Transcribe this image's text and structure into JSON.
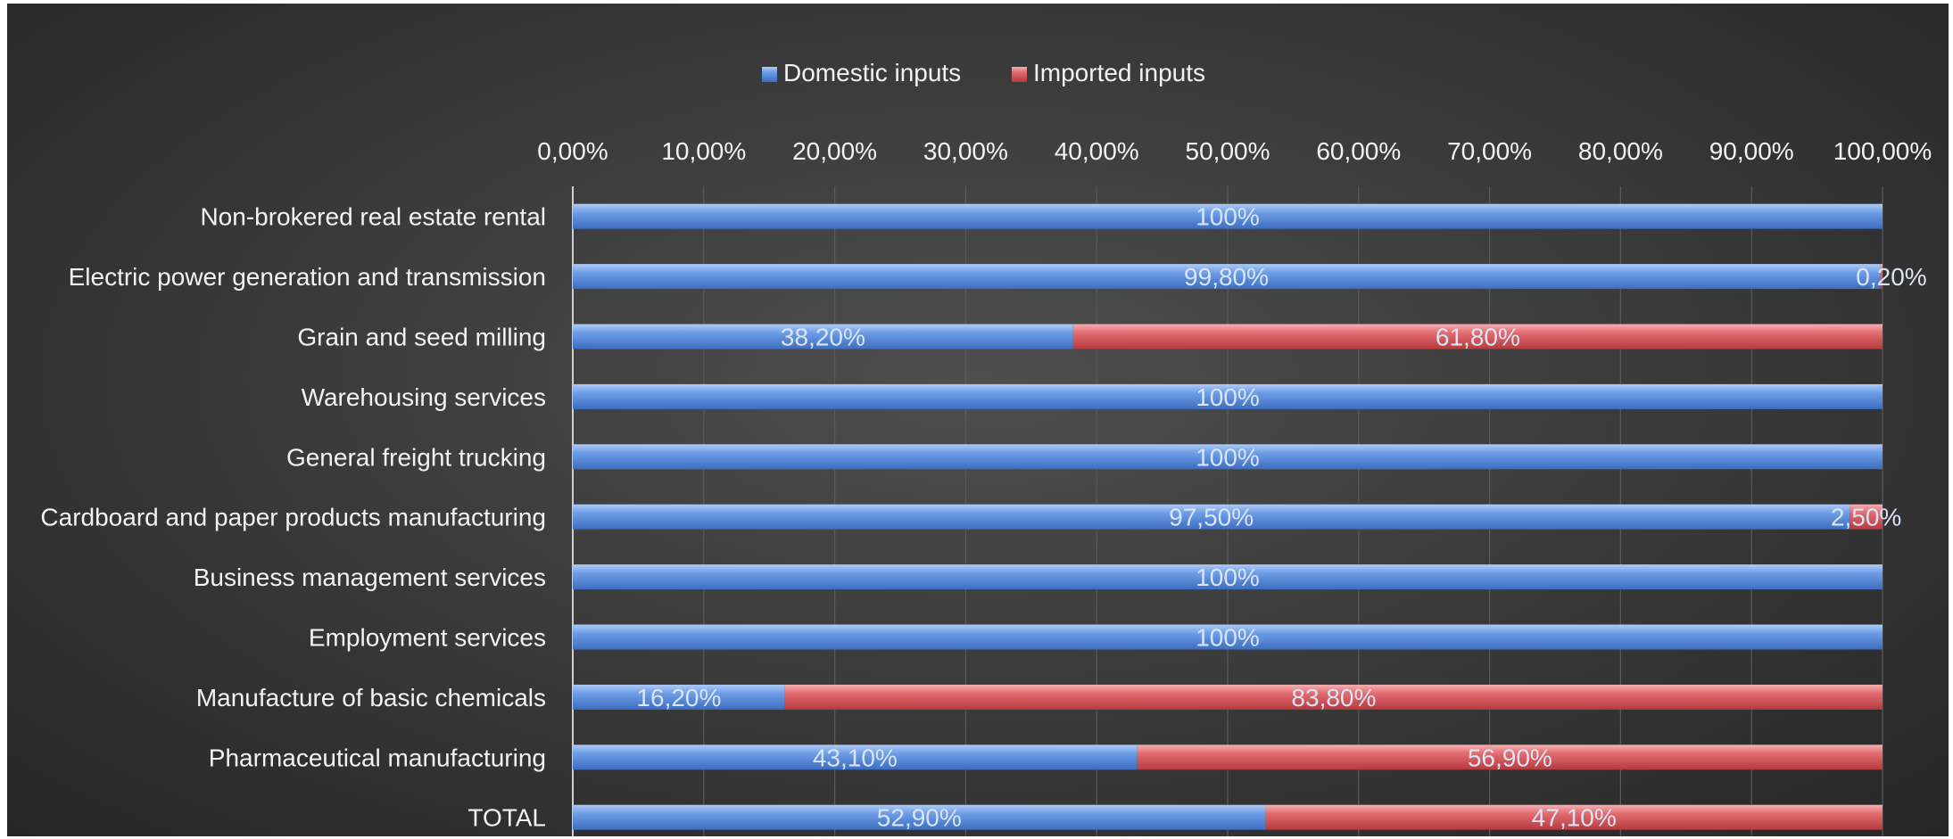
{
  "chart_data": {
    "type": "bar",
    "orientation": "horizontal",
    "stacked": true,
    "categories": [
      "Non-brokered real estate rental",
      "Electric power generation and transmission",
      "Grain and seed milling",
      "Warehousing services",
      "General freight trucking",
      "Cardboard and paper products manufacturing",
      "Business management services",
      "Employment services",
      "Manufacture of basic chemicals",
      "Pharmaceutical manufacturing",
      "TOTAL"
    ],
    "series": [
      {
        "name": "Domestic inputs",
        "color": "#5b8fe0",
        "values": [
          100,
          99.8,
          38.2,
          100,
          100,
          97.5,
          100,
          100,
          16.2,
          43.1,
          52.9
        ],
        "labels": [
          "100%",
          "99,80%",
          "38,20%",
          "100%",
          "100%",
          "97,50%",
          "100%",
          "100%",
          "16,20%",
          "43,10%",
          "52,90%"
        ]
      },
      {
        "name": "Imported inputs",
        "color": "#e0575b",
        "values": [
          0,
          0.2,
          61.8,
          0,
          0,
          2.5,
          0,
          0,
          83.8,
          56.9,
          47.1
        ],
        "labels": [
          "",
          "0,20%",
          "61,80%",
          "",
          "",
          "2,50%",
          "",
          "",
          "83,80%",
          "56,90%",
          "47,10%"
        ]
      }
    ],
    "x_ticks": [
      "0,00%",
      "10,00%",
      "20,00%",
      "30,00%",
      "40,00%",
      "50,00%",
      "60,00%",
      "70,00%",
      "80,00%",
      "90,00%",
      "100,00%"
    ],
    "xlim": [
      0,
      100
    ],
    "x_axis_position": "top",
    "grid": true,
    "legend_position": "top",
    "title": "",
    "xlabel": "",
    "ylabel": ""
  }
}
